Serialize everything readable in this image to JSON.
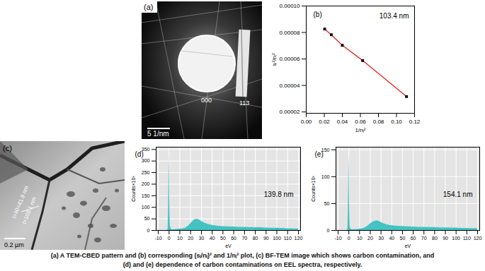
{
  "caption": [
    "(a) A TEM-CBED pattern and (b) corresponding (sᵢ/nᵢ)² and 1/nᵢ² plot, (c) BF-TEM image which shows carbon contamination, and",
    "(d) and (e) dependence of carbon contaminations on  EEL spectra, respectively."
  ],
  "panels": {
    "a": {
      "label": "(a)",
      "spots": [
        "000",
        "113"
      ],
      "scale_bar": "5 1/nm"
    },
    "c": {
      "label": "(c)",
      "annotations": [
        "t>λ0=41.9 nm",
        "t=108.1 nm"
      ],
      "scale_bar": "0.2 µm"
    }
  },
  "chart_data": [
    {
      "type": "line",
      "title": "(b)",
      "annotations": [
        "103.4 nm"
      ],
      "x_label": "1/nᵢ²",
      "y_label": "sᵢ²/nᵢ²",
      "x": [
        0.0204,
        0.0278,
        0.04,
        0.0625,
        0.1111
      ],
      "values": [
        8.26e-05,
        7.83e-05,
        7.03e-05,
        5.88e-05,
        3.16e-05
      ],
      "color": "#e3241b",
      "marker": "square",
      "xlim": [
        0,
        0.12
      ],
      "xticks": [
        {
          "value": 0,
          "label": "0.00"
        },
        {
          "value": 0.04,
          "label": "0.04"
        },
        {
          "value": 0.08,
          "label": "0.08"
        },
        {
          "value": 0.12,
          "label": "0.12"
        },
        {
          "value": 0.02,
          "label": "0.02"
        },
        {
          "value": 0.06,
          "label": "0.06"
        },
        {
          "value": 0.1,
          "label": "0.10"
        }
      ],
      "ylim": [
        1.9e-05,
        0.0001
      ],
      "yticks": [
        {
          "value": 2e-05,
          "label": "0.00002"
        },
        {
          "value": 4e-05,
          "label": "0.00004"
        },
        {
          "value": 6e-05,
          "label": "0.00006"
        },
        {
          "value": 8e-05,
          "label": "0.00008"
        },
        {
          "value": 0.0001,
          "label": "0.00010"
        }
      ]
    },
    {
      "type": "area",
      "title": "(d)",
      "annotations": [
        "139.8 nm"
      ],
      "x_label": "eV",
      "y_label": "Counts×10³",
      "x": [
        -10,
        -5,
        -2,
        -1,
        -0.5,
        0,
        0.5,
        1,
        2,
        3,
        5,
        8,
        10,
        12,
        15,
        18,
        20,
        22,
        24,
        26,
        28,
        30,
        32,
        35,
        40,
        45,
        50,
        55,
        60,
        65,
        70,
        75,
        80,
        85,
        90,
        95,
        100,
        105,
        110,
        115,
        120
      ],
      "values": [
        0,
        0,
        0,
        5,
        100,
        330,
        120,
        20,
        5,
        4,
        4,
        5,
        6,
        7,
        10,
        20,
        30,
        40,
        47,
        49,
        46,
        40,
        34,
        28,
        22,
        19,
        17,
        16,
        15,
        14,
        14,
        13,
        12,
        12,
        11,
        10,
        10,
        9,
        8,
        7,
        7
      ],
      "color": "#45c2c2",
      "grid": true,
      "xlim": [
        -12,
        122
      ],
      "xticks": [
        -10,
        0,
        10,
        20,
        30,
        40,
        50,
        60,
        70,
        80,
        90,
        100,
        110,
        120
      ],
      "ylim": [
        0,
        360
      ],
      "yticks": [
        0,
        50,
        100,
        150,
        200,
        250,
        300,
        350
      ]
    },
    {
      "type": "area",
      "title": "(e)",
      "annotations": [
        "154.1 nm"
      ],
      "x_label": "eV",
      "y_label": "Counts×10³",
      "x": [
        -10,
        -5,
        -2,
        -1,
        -0.5,
        0,
        0.5,
        1,
        2,
        3,
        5,
        8,
        10,
        12,
        15,
        18,
        20,
        22,
        24,
        26,
        28,
        30,
        32,
        35,
        40,
        45,
        50,
        55,
        60,
        65,
        70,
        75,
        80,
        85,
        90,
        95,
        100,
        105,
        110,
        115,
        120
      ],
      "values": [
        0,
        0,
        0,
        2,
        40,
        140,
        50,
        8,
        2,
        1.5,
        1.5,
        2,
        2.5,
        3,
        5,
        9,
        12,
        15,
        17,
        18,
        17,
        15,
        13,
        11,
        9,
        8,
        7.5,
        7,
        6.5,
        6,
        6,
        5.5,
        5.5,
        5,
        5,
        4.5,
        4.5,
        4,
        4,
        3.5,
        3.5
      ],
      "color": "#45c2c2",
      "grid": true,
      "xlim": [
        -12,
        122
      ],
      "xticks": [
        -10,
        0,
        10,
        20,
        30,
        40,
        50,
        60,
        70,
        80,
        90,
        100,
        110,
        120
      ],
      "ylim": [
        0,
        155
      ],
      "yticks": [
        0,
        50,
        100,
        150
      ]
    }
  ]
}
